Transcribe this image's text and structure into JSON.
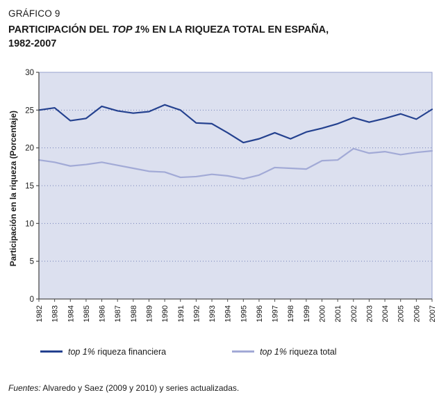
{
  "header": {
    "kicker": "GRÁFICO 9",
    "title_pre": "PARTICIPACIÓN DEL ",
    "title_italic": "TOP 1",
    "title_post": "% EN LA RIQUEZA TOTAL EN ESPAÑA,",
    "title_line2": "1982-2007"
  },
  "chart_data": {
    "type": "line",
    "title": "Participación del Top 1% en la riqueza total en España, 1982-2007",
    "xlabel": "",
    "ylabel": "Participación en la riqueza (Porcentaje)",
    "ylim": [
      0,
      30
    ],
    "yticks": [
      0,
      5,
      10,
      15,
      20,
      25,
      30
    ],
    "grid": "dotted horizontal",
    "legend_position": "bottom",
    "plot_bg": "#dce0ef",
    "grid_color": "#7380b8",
    "border_color": "#96a0cc",
    "axis_color": "#4d4d4d",
    "x": [
      1982,
      1983,
      1984,
      1985,
      1986,
      1987,
      1988,
      1989,
      1990,
      1991,
      1992,
      1993,
      1994,
      1995,
      1996,
      1997,
      1998,
      1999,
      2000,
      2001,
      2002,
      2003,
      2004,
      2005,
      2006,
      2007
    ],
    "series": [
      {
        "name": "top 1% riqueza financiera",
        "color": "#24418f",
        "values": [
          25.0,
          25.3,
          23.6,
          23.9,
          25.5,
          24.9,
          24.6,
          24.8,
          25.7,
          25.0,
          23.3,
          23.2,
          22.0,
          20.7,
          21.2,
          22.0,
          21.2,
          22.1,
          22.6,
          23.2,
          24.0,
          23.4,
          23.9,
          24.5,
          23.8,
          25.1
        ]
      },
      {
        "name": "top 1% riqueza total",
        "color": "#a2aad6",
        "values": [
          18.4,
          18.1,
          17.6,
          17.8,
          18.1,
          17.7,
          17.3,
          16.9,
          16.8,
          16.1,
          16.2,
          16.5,
          16.3,
          15.9,
          16.4,
          17.4,
          17.3,
          17.2,
          18.3,
          18.4,
          19.9,
          19.3,
          19.5,
          19.1,
          19.4,
          19.6
        ]
      }
    ]
  },
  "legend": {
    "items": [
      {
        "italic": "top 1%",
        "rest": " riqueza financiera"
      },
      {
        "italic": "top 1%",
        "rest": " riqueza total"
      }
    ]
  },
  "footer": {
    "italic": "Fuentes:",
    "text": " Alvaredo y Saez (2009 y 2010) y series actualizadas."
  }
}
